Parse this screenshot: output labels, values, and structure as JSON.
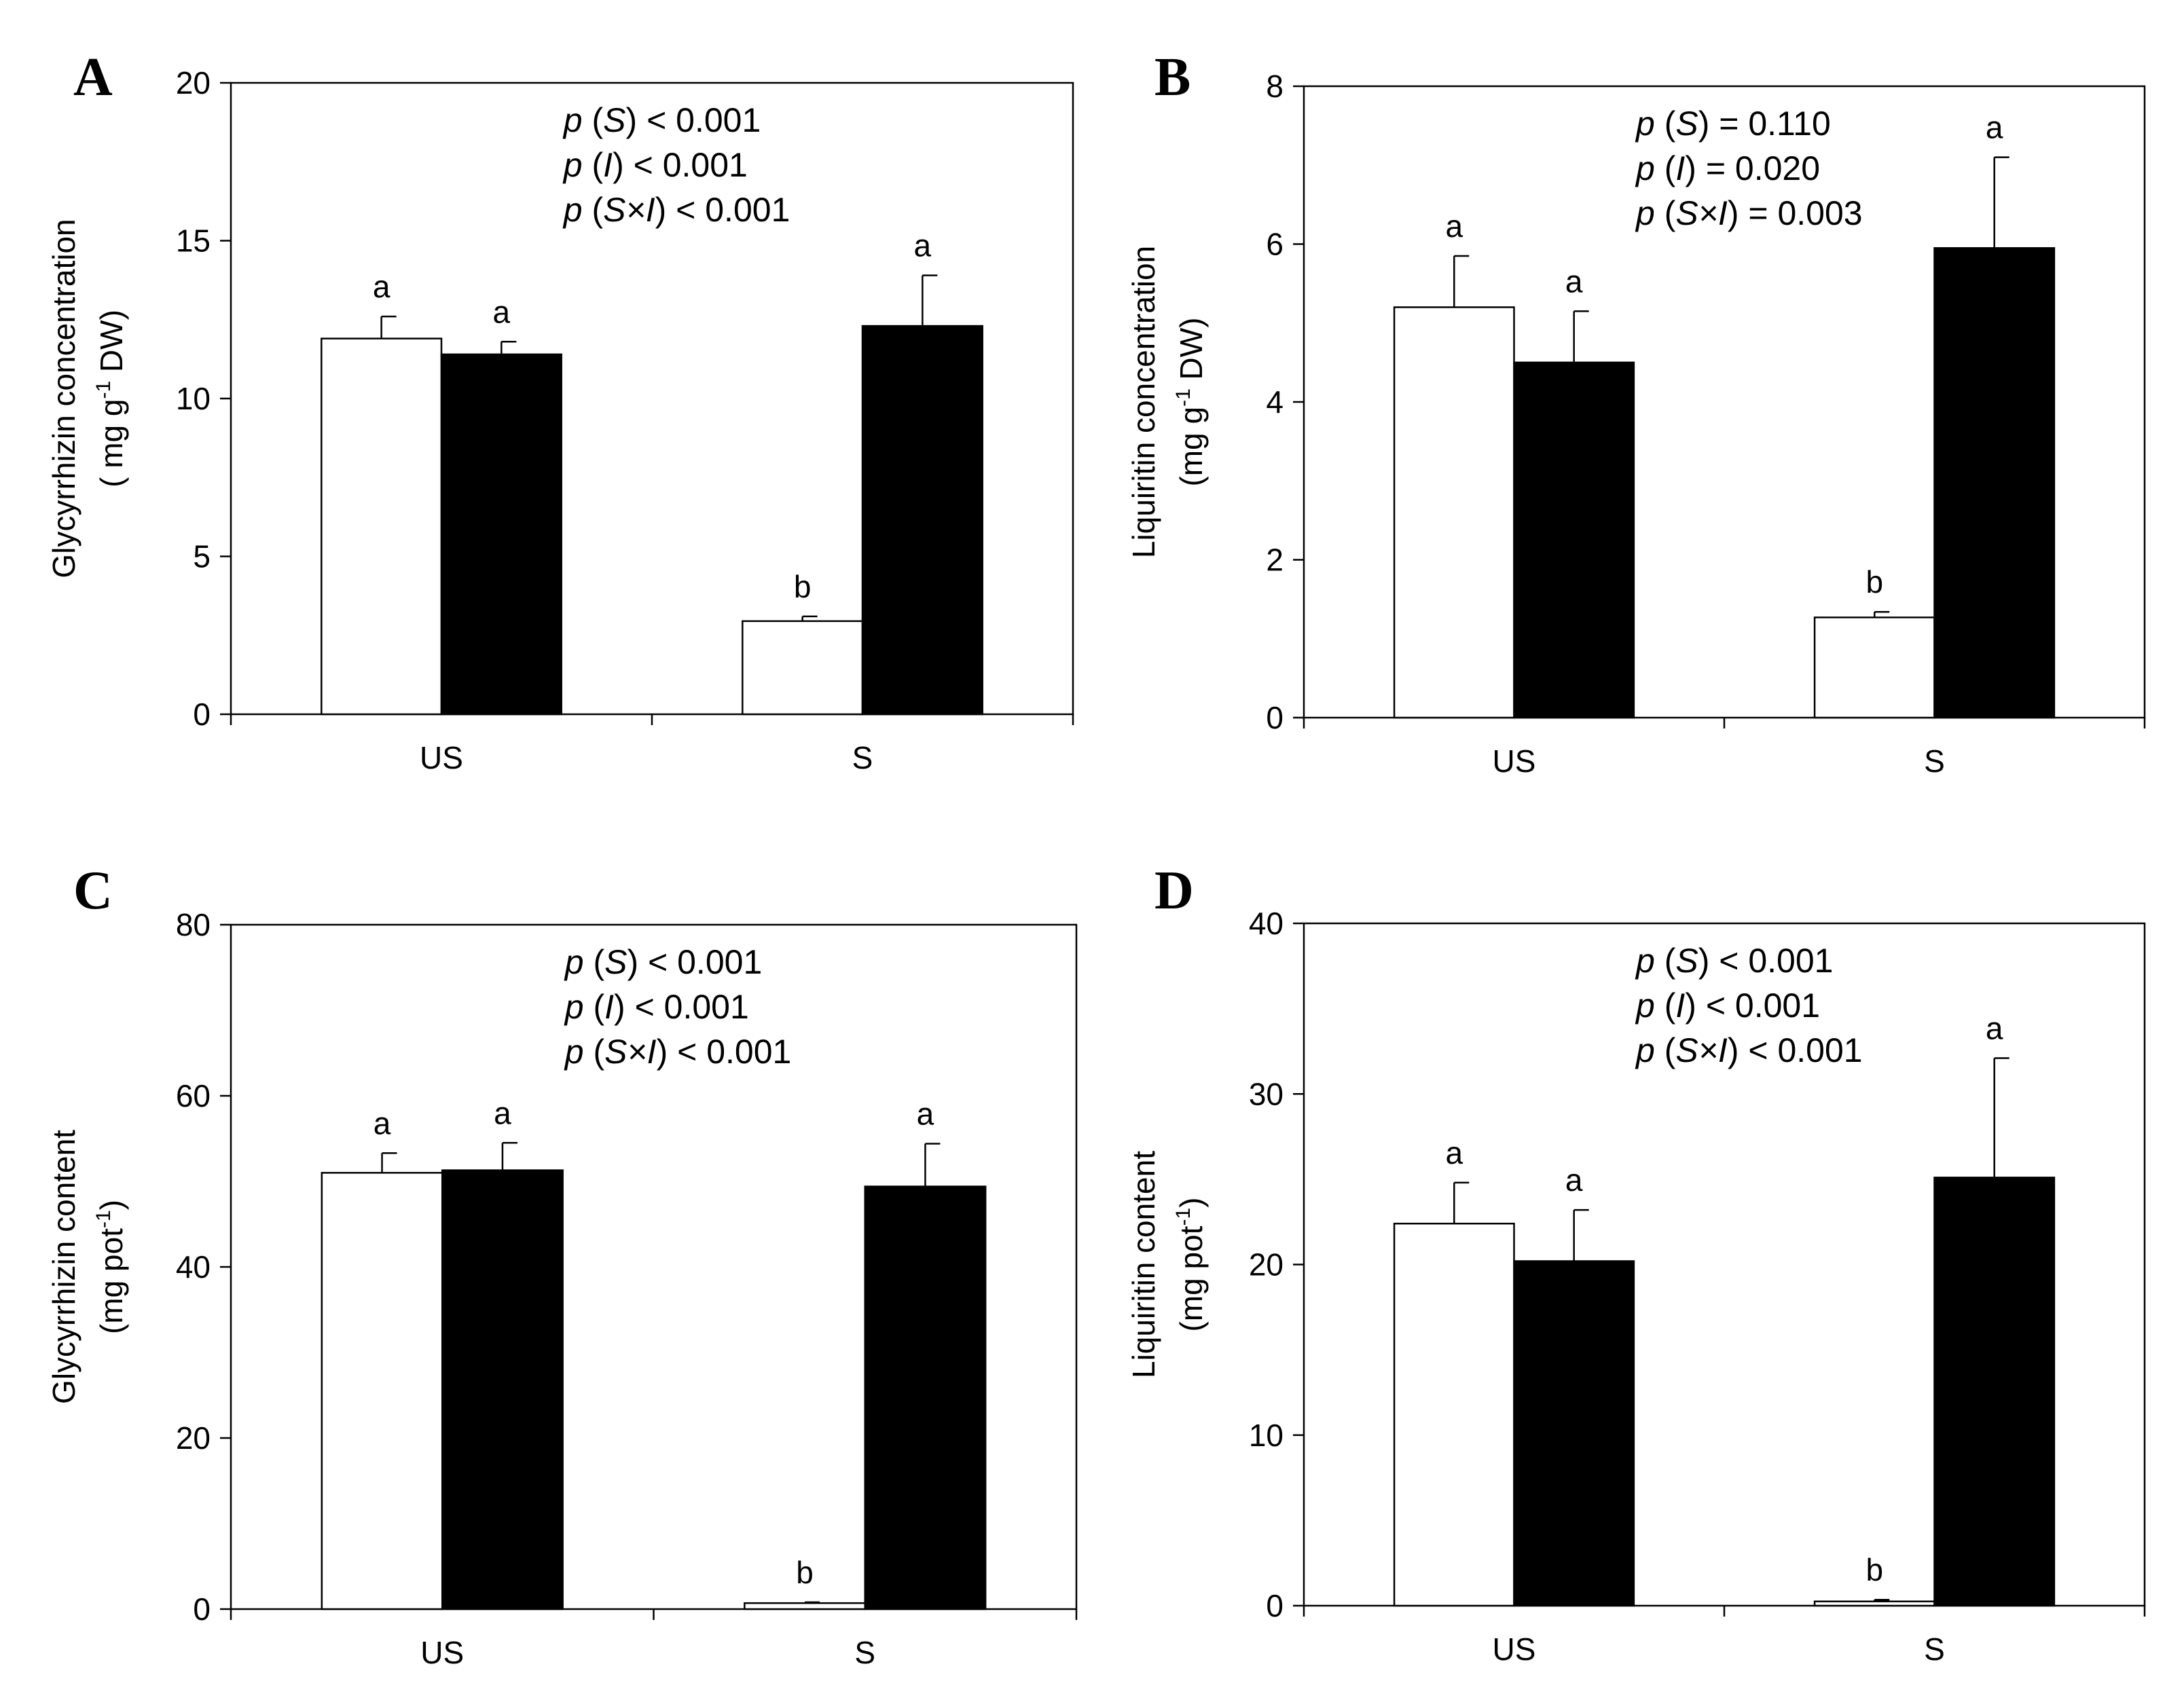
{
  "chart_data": [
    {
      "type": "bar",
      "panel": "A",
      "categories": [
        "US",
        "S"
      ],
      "series": [
        {
          "name": "open",
          "color": "#ffffff",
          "values": [
            11.9,
            2.95
          ],
          "errors": [
            0.7,
            0.15
          ],
          "sig": [
            "a",
            "b"
          ]
        },
        {
          "name": "filled",
          "color": "#000000",
          "values": [
            11.4,
            12.3
          ],
          "errors": [
            0.4,
            1.6
          ],
          "sig": [
            "a",
            "a"
          ]
        }
      ],
      "ylabel_line1": "Glycyrrhizin concentration",
      "ylabel_line2_pre": "( mg g",
      "ylabel_sup": "-1",
      "ylabel_line2_post": " DW)",
      "ylim": [
        0,
        20
      ],
      "yticks": [
        0,
        5,
        10,
        15,
        20
      ],
      "ytick_labels": [
        "0",
        "5",
        "10",
        "15",
        "20"
      ],
      "stats": [
        {
          "p": "p",
          "open": " (",
          "var": "S",
          "close": ")",
          "rest": " < 0.001"
        },
        {
          "p": "p",
          "open": " (",
          "var": "I",
          "close": ")",
          "rest": " < 0.001"
        },
        {
          "p": "p",
          "open": " (",
          "var": "S×I",
          "close": ")",
          "rest": " < 0.001"
        }
      ]
    },
    {
      "type": "bar",
      "panel": "B",
      "categories": [
        "US",
        "S"
      ],
      "series": [
        {
          "name": "open",
          "color": "#ffffff",
          "values": [
            5.2,
            1.27
          ],
          "errors": [
            0.65,
            0.07
          ],
          "sig": [
            "a",
            "b"
          ]
        },
        {
          "name": "filled",
          "color": "#000000",
          "values": [
            4.5,
            5.95
          ],
          "errors": [
            0.65,
            1.15
          ],
          "sig": [
            "a",
            "a"
          ]
        }
      ],
      "ylabel_line1": "Liquiritin concentration",
      "ylabel_line2_pre": "(mg g",
      "ylabel_sup": "-1",
      "ylabel_line2_post": " DW)",
      "ylim": [
        0,
        8
      ],
      "yticks": [
        0,
        2,
        4,
        6,
        8
      ],
      "ytick_labels": [
        "0",
        "2",
        "4",
        "6",
        "8"
      ],
      "stats": [
        {
          "p": "p",
          "open": " (",
          "var": "S",
          "close": ")",
          "rest": " = 0.110"
        },
        {
          "p": "p",
          "open": " (",
          "var": "I",
          "close": ")",
          "rest": " = 0.020"
        },
        {
          "p": "p",
          "open": " (",
          "var": "S×I",
          "close": ")",
          "rest": " = 0.003"
        }
      ]
    },
    {
      "type": "bar",
      "panel": "C",
      "categories": [
        "US",
        "S"
      ],
      "series": [
        {
          "name": "open",
          "color": "#ffffff",
          "values": [
            51.0,
            0.7
          ],
          "errors": [
            2.3,
            0.1
          ],
          "sig": [
            "a",
            "b"
          ]
        },
        {
          "name": "filled",
          "color": "#000000",
          "values": [
            51.3,
            49.4
          ],
          "errors": [
            3.2,
            5.0
          ],
          "sig": [
            "a",
            "a"
          ]
        }
      ],
      "ylabel_line1": "Glycyrrhizin content",
      "ylabel_line2_pre": "(mg pot",
      "ylabel_sup": "-1",
      "ylabel_line2_post": ")",
      "ylim": [
        0,
        80
      ],
      "yticks": [
        0,
        20,
        40,
        60,
        80
      ],
      "ytick_labels": [
        "0",
        "20",
        "40",
        "60",
        "80"
      ],
      "stats": [
        {
          "p": "p",
          "open": " (",
          "var": "S",
          "close": ")",
          "rest": " < 0.001"
        },
        {
          "p": "p",
          "open": " (",
          "var": "I",
          "close": ")",
          "rest": " < 0.001"
        },
        {
          "p": "p",
          "open": " (",
          "var": "S×I",
          "close": ")",
          "rest": " < 0.001"
        }
      ]
    },
    {
      "type": "bar",
      "panel": "D",
      "categories": [
        "US",
        "S"
      ],
      "series": [
        {
          "name": "open",
          "color": "#ffffff",
          "values": [
            22.4,
            0.25
          ],
          "errors": [
            2.4,
            0.1
          ],
          "sig": [
            "a",
            "b"
          ]
        },
        {
          "name": "filled",
          "color": "#000000",
          "values": [
            20.2,
            25.1
          ],
          "errors": [
            3.0,
            7.0
          ],
          "sig": [
            "a",
            "a"
          ]
        }
      ],
      "ylabel_line1": "Liquiritin content",
      "ylabel_line2_pre": "(mg pot",
      "ylabel_sup": "-1",
      "ylabel_line2_post": ")",
      "ylim": [
        0,
        40
      ],
      "yticks": [
        0,
        10,
        20,
        30,
        40
      ],
      "ytick_labels": [
        "0",
        "10",
        "20",
        "30",
        "40"
      ],
      "stats": [
        {
          "p": "p",
          "open": " (",
          "var": "S",
          "close": ")",
          "rest": " < 0.001"
        },
        {
          "p": "p",
          "open": " (",
          "var": "I",
          "close": ")",
          "rest": " < 0.001"
        },
        {
          "p": "p",
          "open": " (",
          "var": "S×I",
          "close": ")",
          "rest": " < 0.001"
        }
      ]
    }
  ]
}
